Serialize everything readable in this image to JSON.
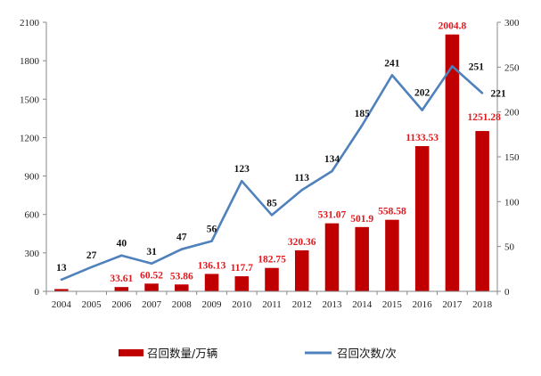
{
  "chart_data": {
    "type": "bar+line",
    "categories": [
      "2004",
      "2005",
      "2006",
      "2007",
      "2008",
      "2009",
      "2010",
      "2011",
      "2012",
      "2013",
      "2014",
      "2015",
      "2016",
      "2017",
      "2018"
    ],
    "series": [
      {
        "name": "召回数量/万辆",
        "type": "bar",
        "axis": "left",
        "color": "#c00000",
        "values": [
          18,
          0,
          33.61,
          60.52,
          53.86,
          136.13,
          117.7,
          182.75,
          320.36,
          531.07,
          501.9,
          558.58,
          1133.53,
          2004.8,
          1251.28
        ],
        "labels": [
          "",
          "",
          "33.61",
          "60.52",
          "53.86",
          "136.13",
          "117.7",
          "182.75",
          "320.36",
          "531.07",
          "501.9",
          "558.58",
          "1133.53",
          "2004.8",
          "1251.28"
        ],
        "label_color": "#e0191e"
      },
      {
        "name": "召回次数/次",
        "type": "line",
        "axis": "right",
        "color": "#4f81bd",
        "values": [
          13,
          27,
          40,
          31,
          47,
          56,
          123,
          85,
          113,
          134,
          185,
          241,
          202,
          251,
          221
        ],
        "labels": [
          "13",
          "27",
          "40",
          "31",
          "47",
          "56",
          "123",
          "85",
          "113",
          "134",
          "185",
          "241",
          "202",
          "251",
          "221"
        ]
      }
    ],
    "left_axis": {
      "min": 0,
      "max": 2100,
      "ticks": [
        "0",
        "300",
        "600",
        "900",
        "1200",
        "1500",
        "1800",
        "2100"
      ]
    },
    "right_axis": {
      "min": 0,
      "max": 300,
      "ticks": [
        "0",
        "50",
        "100",
        "150",
        "200",
        "250",
        "300"
      ]
    },
    "legend": {
      "placement": "bottom"
    },
    "grid": false
  }
}
